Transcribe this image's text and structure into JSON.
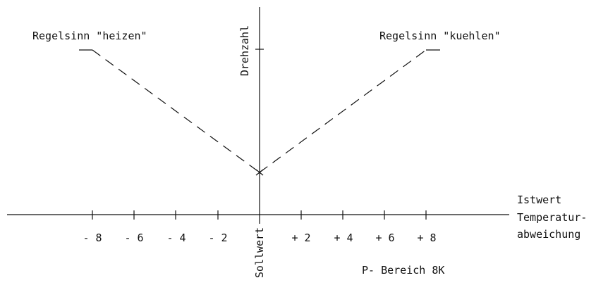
{
  "labels": {
    "y_axis": "Drehzahl",
    "x_axis_line1": "Istwert",
    "x_axis_line2": "Temperatur-",
    "x_axis_line3": "abweichung",
    "setpoint": "Sollwert",
    "p_range": "P- Bereich 8K",
    "heating_mode": "Regelsinn \"heizen\"",
    "cooling_mode": "Regelsinn \"kuehlen\""
  },
  "ticks": {
    "neg8": "- 8",
    "neg6": "- 6",
    "neg4": "- 4",
    "neg2": "- 2",
    "pos2": "+ 2",
    "pos4": "+ 4",
    "pos6": "+ 6",
    "pos8": "+ 8"
  },
  "colors": {
    "ink": "#111111",
    "background": "#ffffff"
  }
}
